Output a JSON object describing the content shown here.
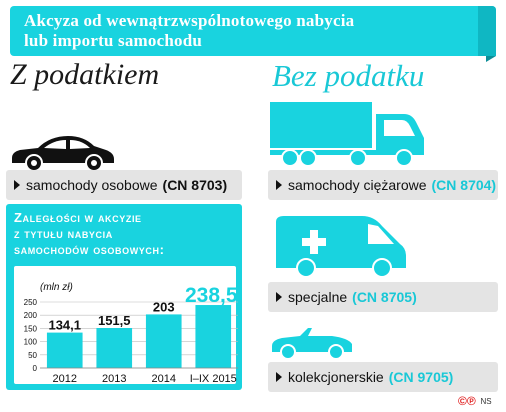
{
  "header": {
    "line1": "Akcyza od wewnątrzwspólnotowego nabycia",
    "line2": "lub importu samochodu"
  },
  "left": {
    "title": "Z podatkiem",
    "category": {
      "label": "samochody osobowe",
      "code": "(CN 8703)"
    }
  },
  "right": {
    "title": "Bez podatku",
    "categories": [
      {
        "label": "samochody ciężarowe",
        "code": "(CN 8704)"
      },
      {
        "label": "specjalne",
        "code": "(CN 8705)"
      },
      {
        "label": "kolekcjonerskie",
        "code": "(CN 9705)"
      }
    ]
  },
  "panel": {
    "title_line1": "Zaległości w akcyzie",
    "title_line2": "z tytułu nabycia",
    "title_line3": "samochodów osobowych:"
  },
  "chart_data": {
    "type": "bar",
    "unit_label": "(mln zł)",
    "categories": [
      "2012",
      "2013",
      "2014",
      "I–IX 2015"
    ],
    "values": [
      134.1,
      151.5,
      203,
      238.5
    ],
    "value_labels": [
      "134,1",
      "151,5",
      "203",
      "238,5"
    ],
    "y_ticks": [
      "0",
      "50",
      "100",
      "150",
      "200",
      "250"
    ],
    "ylim": [
      0,
      250
    ],
    "grid": true,
    "colors": {
      "bar": "#19d3df",
      "highlight_label": "#19d3df",
      "label": "#111111"
    }
  },
  "footer": {
    "logo_mark": "©℗",
    "credit": "NS"
  },
  "colors": {
    "accent": "#19d3df",
    "gray_bar": "#e4e4e4",
    "dark": "#111111"
  },
  "icons": [
    "car-icon",
    "truck-icon",
    "ambulance-icon",
    "convertible-icon"
  ]
}
